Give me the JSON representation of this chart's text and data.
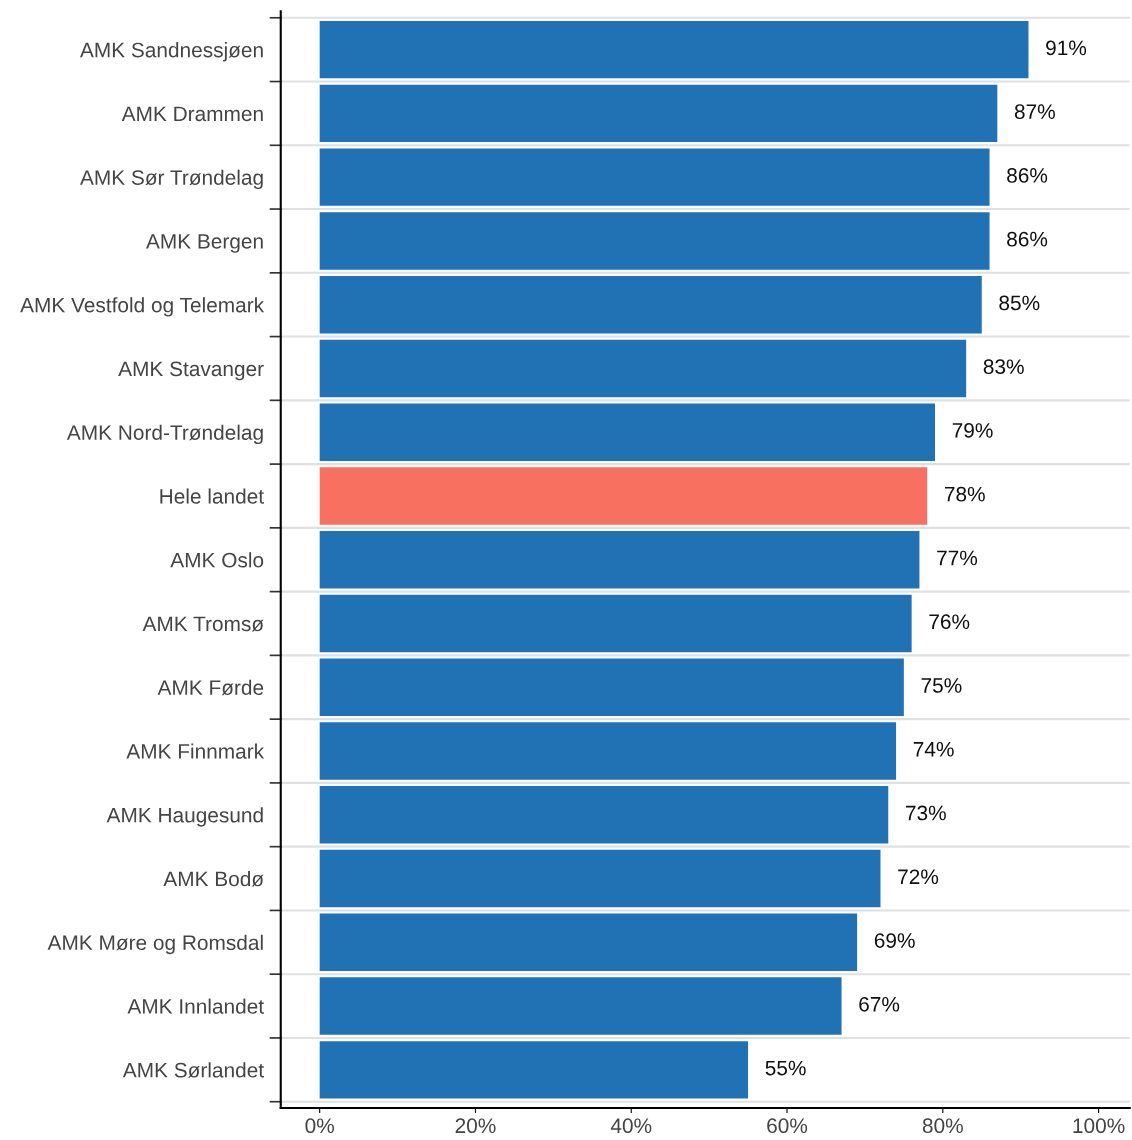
{
  "chart_data": {
    "type": "bar",
    "orientation": "horizontal",
    "categories": [
      "AMK Sandnessjøen",
      "AMK Drammen",
      "AMK Sør Trøndelag",
      "AMK Bergen",
      "AMK Vestfold og Telemark",
      "AMK Stavanger",
      "AMK Nord-Trøndelag",
      "Hele landet",
      "AMK Oslo",
      "AMK Tromsø",
      "AMK Førde",
      "AMK Finnmark",
      "AMK Haugesund",
      "AMK Bodø",
      "AMK Møre og Romsdal",
      "AMK Innlandet",
      "AMK Sørlandet"
    ],
    "values": [
      91,
      87,
      86,
      86,
      85,
      83,
      79,
      78,
      77,
      76,
      75,
      74,
      73,
      72,
      69,
      67,
      55
    ],
    "value_labels": [
      "91%",
      "87%",
      "86%",
      "86%",
      "85%",
      "83%",
      "79%",
      "78%",
      "77%",
      "76%",
      "75%",
      "74%",
      "73%",
      "72%",
      "69%",
      "67%",
      "55%"
    ],
    "colors": [
      "#2171b5",
      "#2171b5",
      "#2171b5",
      "#2171b5",
      "#2171b5",
      "#2171b5",
      "#2171b5",
      "#f87060",
      "#2171b5",
      "#2171b5",
      "#2171b5",
      "#2171b5",
      "#2171b5",
      "#2171b5",
      "#2171b5",
      "#2171b5",
      "#2171b5"
    ],
    "xlim": [
      -5,
      104
    ],
    "xticks": [
      {
        "value": 0,
        "label": "0%"
      },
      {
        "value": 20,
        "label": "20%"
      },
      {
        "value": 40,
        "label": "40%"
      },
      {
        "value": 60,
        "label": "60%"
      },
      {
        "value": 80,
        "label": "80%"
      },
      {
        "value": 100,
        "label": "100%"
      }
    ],
    "grid": "y",
    "legend": false
  }
}
